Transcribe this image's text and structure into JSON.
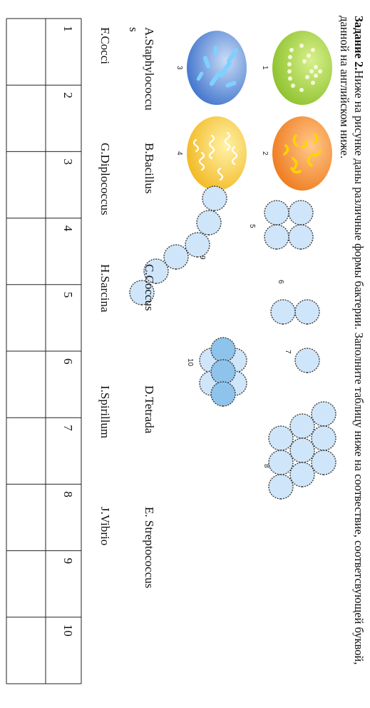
{
  "task": {
    "title": "Задание 2.",
    "text": "Ниже на рисунке даны различные формы бактерии. Заполните таблицу ниже на соотвествие, соответсвующей буквой, данной на английском ниже."
  },
  "figure_numbers": [
    "1",
    "2",
    "3",
    "4",
    "5",
    "6",
    "7",
    "8",
    "9",
    "10"
  ],
  "options": [
    {
      "letter": "A.",
      "name": "Staphylococcu",
      "wrap": "s"
    },
    {
      "letter": "B.",
      "name": "Bacillus"
    },
    {
      "letter": "C.",
      "name": "Coccus"
    },
    {
      "letter": "D.",
      "name": "Tetrada"
    },
    {
      "letter": "E.",
      "name": " Streptococcus"
    },
    {
      "letter": "F.",
      "name": "Cocci"
    },
    {
      "letter": "G.",
      "name": "Diplococcus"
    },
    {
      "letter": "H.",
      "name": "Sarcina"
    },
    {
      "letter": "I.",
      "name": "Spirillum"
    },
    {
      "letter": "J.",
      "name": "Vibrio"
    }
  ],
  "answer_table": {
    "headers": [
      "1",
      "2",
      "3",
      "4",
      "5",
      "6",
      "7",
      "8",
      "9",
      "10"
    ],
    "answers": [
      "",
      "",
      "",
      "",
      "",
      "",
      "",
      "",
      "",
      ""
    ]
  },
  "colors": {
    "green_cell": "#9ccd3a",
    "orange_cell": "#f08a2a",
    "blue_cell": "#4f86d8",
    "yellow_cell": "#f4c632",
    "coccus_fill": "#cfe6fa",
    "coccus_dark": "#8ec3ec"
  }
}
